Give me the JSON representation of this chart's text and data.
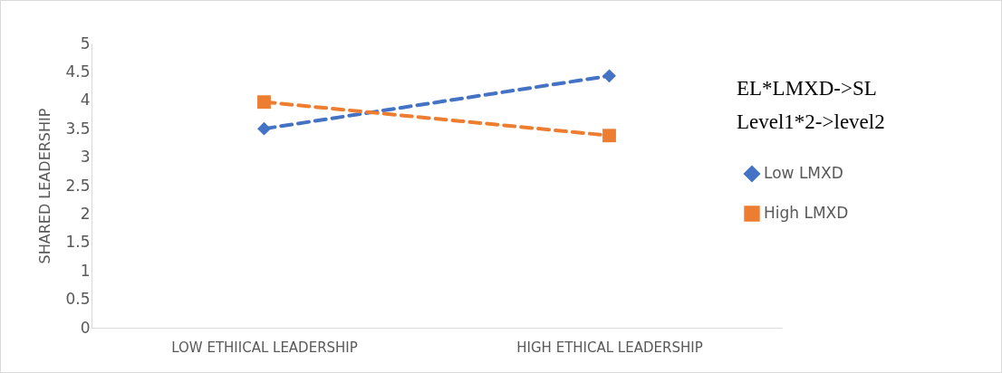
{
  "chart_data": {
    "type": "line",
    "ylabel": "SHARED LEADERSHIP",
    "categories": [
      "LOW ETHIICAL LEADERSHIP",
      "HIGH ETHICAL LEADERSHIP"
    ],
    "series": [
      {
        "name": "Low LMXD",
        "color": "#4472c4",
        "marker": "diamond",
        "values": [
          3.5,
          4.43
        ]
      },
      {
        "name": "High LMXD",
        "color": "#ed7d31",
        "marker": "square",
        "values": [
          3.97,
          3.38
        ]
      }
    ],
    "ylim": [
      0,
      5
    ],
    "yticks": [
      0,
      0.5,
      1,
      1.5,
      2,
      2.5,
      3,
      3.5,
      4,
      4.5,
      5
    ],
    "grid": false,
    "legend": "right",
    "line_style": "dashed",
    "annotations": [
      "EL*LMXD->SL",
      "Level1*2->level2"
    ]
  }
}
